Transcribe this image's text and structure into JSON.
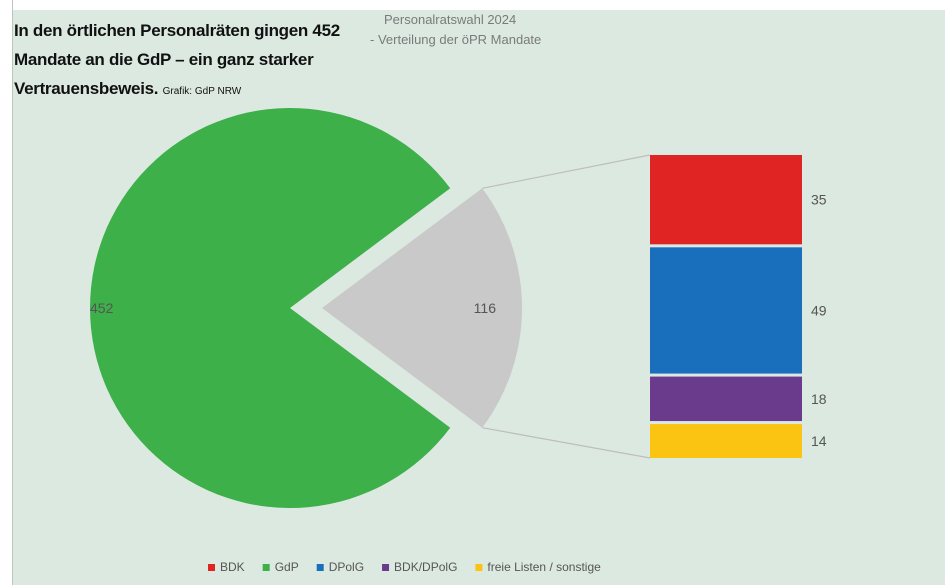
{
  "headline": {
    "text": "In den örtlichen Personalräten gingen 452 Mandate an die GdP – ein ganz starker Vertrauensbeweis.",
    "credit": "Grafik: GdP NRW"
  },
  "chart_data": {
    "type": "pie",
    "title_lines": [
      "Personalratswahl 2024",
      "- Verteilung der öPR Mandate"
    ],
    "pie": {
      "slices": [
        {
          "name": "GdP",
          "value": 452,
          "color": "#3db04a"
        },
        {
          "name": "",
          "value": 116,
          "color": "#c9c9c9"
        }
      ]
    },
    "bar_of_pie": {
      "segments": [
        {
          "name": "BDK",
          "value": 35,
          "color": "#e02424"
        },
        {
          "name": "DPolG",
          "value": 49,
          "color": "#1a6fbd"
        },
        {
          "name": "BDK/DPolG",
          "value": 18,
          "color": "#6a3a8c"
        },
        {
          "name": "freie Listen / sonstige",
          "value": 14,
          "color": "#fbc312"
        }
      ]
    },
    "legend": {
      "position": "bottom",
      "items": [
        {
          "name": "BDK",
          "color": "#e02424"
        },
        {
          "name": "GdP",
          "color": "#3db04a"
        },
        {
          "name": "DPolG",
          "color": "#1a6fbd"
        },
        {
          "name": "BDK/DPolG",
          "color": "#6a3a8c"
        },
        {
          "name": "freie Listen / sonstige",
          "color": "#fbc312"
        }
      ]
    }
  }
}
